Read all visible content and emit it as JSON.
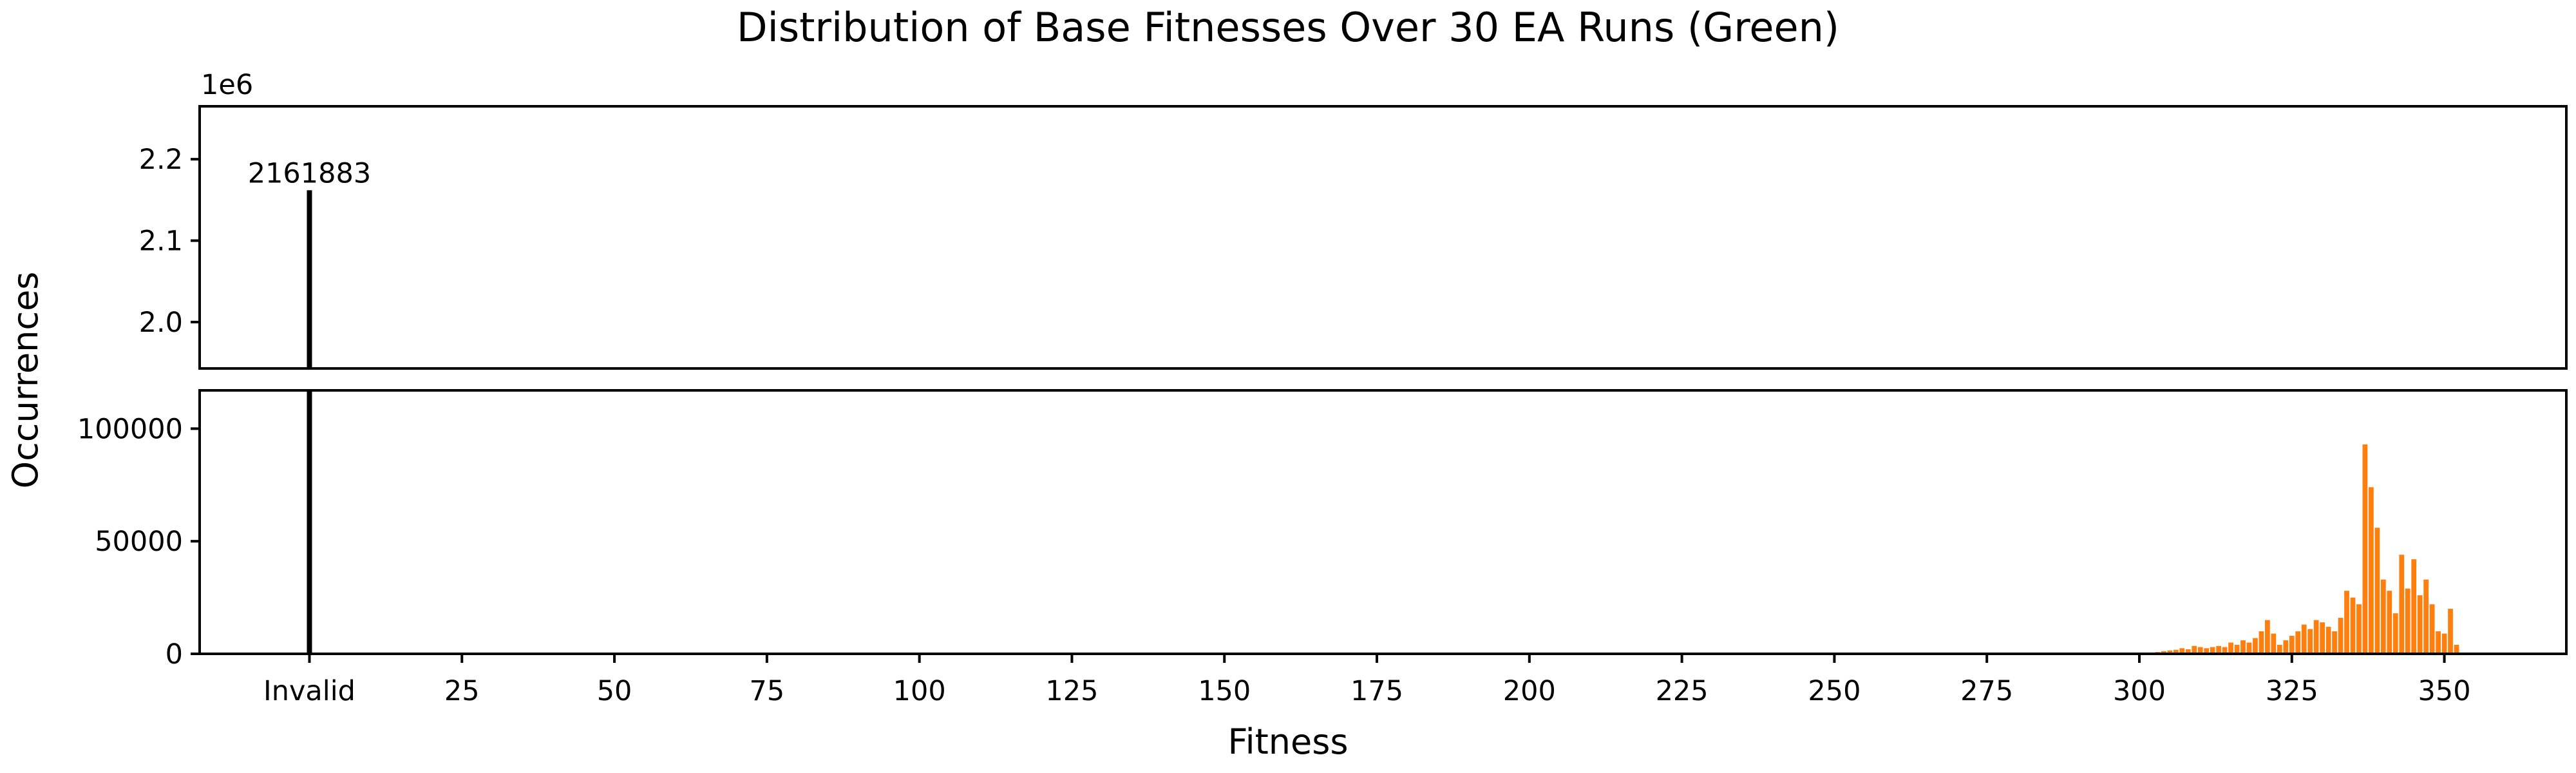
{
  "chart_data": {
    "type": "bar",
    "title": "Distribution of Base Fitnesses Over 30 EA Runs (Green)",
    "xlabel": "Fitness",
    "ylabel": "Occurrences",
    "broken_axis": true,
    "xlim": [
      -18,
      370
    ],
    "x_ticks": [
      {
        "value": 0,
        "label": "Invalid"
      },
      {
        "value": 25,
        "label": "25"
      },
      {
        "value": 50,
        "label": "50"
      },
      {
        "value": 75,
        "label": "75"
      },
      {
        "value": 100,
        "label": "100"
      },
      {
        "value": 125,
        "label": "125"
      },
      {
        "value": 150,
        "label": "150"
      },
      {
        "value": 175,
        "label": "175"
      },
      {
        "value": 200,
        "label": "200"
      },
      {
        "value": 225,
        "label": "225"
      },
      {
        "value": 250,
        "label": "250"
      },
      {
        "value": 275,
        "label": "275"
      },
      {
        "value": 300,
        "label": "300"
      },
      {
        "value": 325,
        "label": "325"
      },
      {
        "value": 350,
        "label": "350"
      }
    ],
    "top_panel": {
      "ylim": [
        1943000,
        2265000
      ],
      "offset_label": "1e6",
      "y_ticks": [
        {
          "value": 2000000,
          "label": "2.0"
        },
        {
          "value": 2100000,
          "label": "2.1"
        },
        {
          "value": 2200000,
          "label": "2.2"
        }
      ]
    },
    "bottom_panel": {
      "ylim": [
        0,
        117000
      ],
      "y_ticks": [
        {
          "value": 0,
          "label": "0"
        },
        {
          "value": 50000,
          "label": "50000"
        },
        {
          "value": 100000,
          "label": "100000"
        }
      ]
    },
    "invalid_bar": {
      "x": 0,
      "value": 2161883,
      "label": "2161883",
      "color": "#000000"
    },
    "series": [
      {
        "color": "#ff7f0e",
        "x": [
          302,
          303,
          304,
          305,
          306,
          307,
          308,
          309,
          310,
          311,
          312,
          313,
          314,
          315,
          316,
          317,
          318,
          319,
          320,
          321,
          322,
          323,
          324,
          325,
          326,
          327,
          328,
          329,
          330,
          331,
          332,
          333,
          334,
          335,
          336,
          337,
          338,
          339,
          340,
          341,
          342,
          343,
          344,
          345,
          346,
          347,
          348,
          349,
          350,
          351,
          352
        ],
        "values": [
          500,
          800,
          1200,
          1500,
          1800,
          2500,
          2000,
          3500,
          3000,
          2500,
          3000,
          3500,
          3000,
          5000,
          4000,
          6000,
          5000,
          7000,
          10000,
          15000,
          9000,
          4000,
          6000,
          8000,
          10000,
          13000,
          11000,
          15000,
          14000,
          12000,
          10000,
          16000,
          28000,
          25000,
          22000,
          93000,
          74000,
          56000,
          33000,
          28000,
          18000,
          44000,
          29000,
          42000,
          26000,
          33000,
          22000,
          10000,
          9000,
          20000,
          4000
        ]
      }
    ]
  }
}
